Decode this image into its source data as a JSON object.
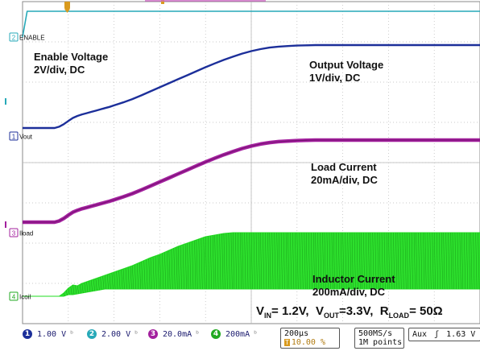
{
  "chart_data": {
    "type": "line",
    "title": "",
    "xlabel": "",
    "ylabel": "",
    "grid": true,
    "grid_divisions": {
      "x": 10,
      "y": 8
    },
    "x": [
      0.0,
      0.1,
      0.15,
      0.2,
      0.25,
      0.3,
      0.4,
      0.5,
      0.6,
      0.7,
      0.8,
      0.9,
      1.0,
      1.1,
      1.2,
      1.3,
      1.4,
      1.5,
      1.6,
      1.7,
      1.8,
      1.9,
      2.0,
      2.2,
      2.4,
      2.6,
      2.8,
      3.0,
      3.2,
      3.4,
      3.6,
      3.8,
      4.0,
      4.2,
      4.4,
      4.6,
      4.8,
      5.0,
      5.2,
      5.4,
      5.6,
      5.8,
      6.0,
      6.2,
      6.4,
      6.6,
      6.8,
      7.0,
      7.2,
      7.4,
      7.6,
      7.8,
      8.0,
      8.2,
      8.4,
      8.6,
      8.8,
      9.0,
      9.2,
      9.4,
      9.6,
      9.8,
      10.0
    ],
    "x_unit": "div",
    "series": [
      {
        "name": "ENABLE",
        "channel": "2",
        "color": "#27a9b8",
        "values": [
          0.0,
          1.5,
          1.5,
          1.5,
          1.5,
          1.5,
          1.5,
          1.5,
          1.5,
          1.5,
          1.5,
          1.5,
          1.5,
          1.5,
          1.5,
          1.5,
          1.5,
          1.5,
          1.5,
          1.5,
          1.5,
          1.5,
          1.5,
          1.5,
          1.5,
          1.5,
          1.5,
          1.5,
          1.5,
          1.5,
          1.5,
          1.5,
          1.5,
          1.5,
          1.5,
          1.5,
          1.5,
          1.5,
          1.5,
          1.5,
          1.5,
          1.5,
          1.5,
          1.5,
          1.5,
          1.5,
          1.5,
          1.5,
          1.5,
          1.5,
          1.5,
          1.5,
          1.5,
          1.5,
          1.5,
          1.5,
          1.5,
          1.5,
          1.5,
          1.5,
          1.5,
          1.5,
          1.5
        ]
      },
      {
        "name": "Vout",
        "channel": "1",
        "color": "#1c2f9a",
        "values": [
          0.0,
          0.0,
          0.0,
          0.0,
          0.0,
          0.0,
          0.0,
          0.0,
          0.0,
          0.0,
          0.05,
          0.15,
          0.28,
          0.4,
          0.48,
          0.54,
          0.59,
          0.64,
          0.69,
          0.74,
          0.79,
          0.84,
          0.9,
          1.02,
          1.15,
          1.3,
          1.46,
          1.62,
          1.78,
          1.94,
          2.1,
          2.26,
          2.42,
          2.57,
          2.71,
          2.84,
          2.96,
          3.06,
          3.14,
          3.2,
          3.24,
          3.26,
          3.28,
          3.29,
          3.3,
          3.3,
          3.3,
          3.3,
          3.3,
          3.3,
          3.3,
          3.3,
          3.3,
          3.3,
          3.3,
          3.3,
          3.3,
          3.3,
          3.3,
          3.3,
          3.3,
          3.3,
          3.3
        ]
      },
      {
        "name": "Iload",
        "channel": "3",
        "color": "#a3209e",
        "values": [
          0.0,
          0.0,
          0.0,
          0.0,
          0.0,
          0.0,
          0.0,
          0.0,
          0.0,
          0.0,
          1.0,
          3.0,
          5.6,
          8.0,
          9.6,
          10.8,
          11.8,
          12.8,
          13.8,
          14.8,
          15.8,
          16.8,
          18.0,
          20.4,
          23.0,
          26.0,
          29.2,
          32.4,
          35.6,
          38.8,
          42.0,
          45.2,
          48.4,
          51.4,
          54.2,
          56.8,
          59.2,
          61.2,
          62.8,
          64.0,
          64.8,
          65.2,
          65.6,
          65.8,
          66.0,
          66.0,
          66.0,
          66.0,
          66.0,
          66.0,
          66.0,
          66.0,
          66.0,
          66.0,
          66.0,
          66.0,
          66.0,
          66.0,
          66.0,
          66.0,
          66.0,
          66.0,
          66.0
        ]
      },
      {
        "name": "Icoil",
        "channel": "4",
        "color": "#22dd22",
        "values": [
          0,
          0,
          0,
          0,
          0,
          0,
          0,
          0,
          0,
          0,
          0,
          0,
          0,
          0,
          0,
          0,
          0,
          0,
          0,
          0,
          0,
          0,
          0,
          0,
          0,
          0,
          0,
          0,
          0,
          0,
          0,
          0,
          0,
          0,
          0,
          0,
          0,
          0,
          0,
          0,
          0,
          0,
          0,
          0,
          0,
          0,
          0,
          0,
          0,
          0,
          0,
          0,
          0,
          0,
          0,
          0,
          0,
          0,
          0,
          0,
          0,
          0,
          0
        ],
        "envelope_low": [
          0,
          0,
          0,
          0,
          0,
          0,
          0,
          0,
          0,
          0,
          0,
          0,
          40,
          40,
          60,
          80,
          100,
          120,
          140,
          160,
          180,
          180,
          180,
          180,
          180,
          180,
          180,
          180,
          180,
          180,
          180,
          180,
          180,
          180,
          180,
          180,
          180,
          180,
          180,
          180,
          180,
          180,
          180,
          180,
          180,
          180,
          180,
          180,
          180,
          180,
          180,
          180,
          180,
          180,
          180,
          180,
          180,
          180,
          180,
          180,
          180,
          180,
          180
        ],
        "envelope_high": [
          0,
          0,
          0,
          0,
          0,
          0,
          0,
          0,
          0,
          0,
          0,
          80,
          200,
          280,
          260,
          320,
          360,
          400,
          440,
          480,
          520,
          560,
          600,
          680,
          760,
          860,
          960,
          1040,
          1140,
          1240,
          1320,
          1400,
          1480,
          1520,
          1560,
          1580,
          1580,
          1580,
          1580,
          1580,
          1580,
          1580,
          1580,
          1580,
          1580,
          1580,
          1580,
          1580,
          1580,
          1580,
          1580,
          1580,
          1580,
          1580,
          1580,
          1580,
          1580,
          1580,
          1580,
          1580,
          1580,
          1580,
          1580
        ]
      }
    ]
  },
  "trace_labels": {
    "enable": {
      "channel": "2",
      "name": "ENABLE"
    },
    "vout": {
      "channel": "1",
      "name": "Vout"
    },
    "iload": {
      "channel": "3",
      "name": "Iload"
    },
    "icoil": {
      "channel": "4",
      "name": "Icoil"
    }
  },
  "annotations": {
    "enable": {
      "line1": "Enable Voltage",
      "line2": "2V/div, DC"
    },
    "vout": {
      "line1": "Output Voltage",
      "line2": "1V/div, DC"
    },
    "iload": {
      "line1": "Load Current",
      "line2": "20mA/div, DC"
    },
    "icoil": {
      "line1": "Inductor Current",
      "line2": "200mA/div, DC"
    },
    "conditions": {
      "vin_sym": "V",
      "vin_sub": "IN",
      "vin_val": "= 1.2V,",
      "vout_sym": "V",
      "vout_sub": "OUT",
      "vout_val": "=3.3V,",
      "rload_sym": "R",
      "rload_sub": "LOAD",
      "rload_val": "= 50Ω"
    }
  },
  "status": {
    "ch1": {
      "num": "1",
      "scale": "1.00 V",
      "color": "#1c2f9a"
    },
    "ch2": {
      "num": "2",
      "scale": "2.00 V",
      "color": "#27a9b8"
    },
    "ch3": {
      "num": "3",
      "scale": "20.0mA",
      "color": "#a3209e"
    },
    "ch4": {
      "num": "4",
      "scale": "200mA",
      "color": "#22aa22"
    },
    "bw_symbol": "ᵇ",
    "timebase": "200µs",
    "trigger_pos": "10.00 %",
    "trigger_tag": "T",
    "sample_rate": "500MS/s",
    "record_length": "1M points",
    "trigger_source": "Aux",
    "trigger_slope": "ʃ",
    "trigger_level": "1.63 V"
  },
  "colors": {
    "grid": "#b9b9b9",
    "frame": "#888888",
    "trigger_marker": "#d99a1e",
    "background": "#ffffff"
  }
}
